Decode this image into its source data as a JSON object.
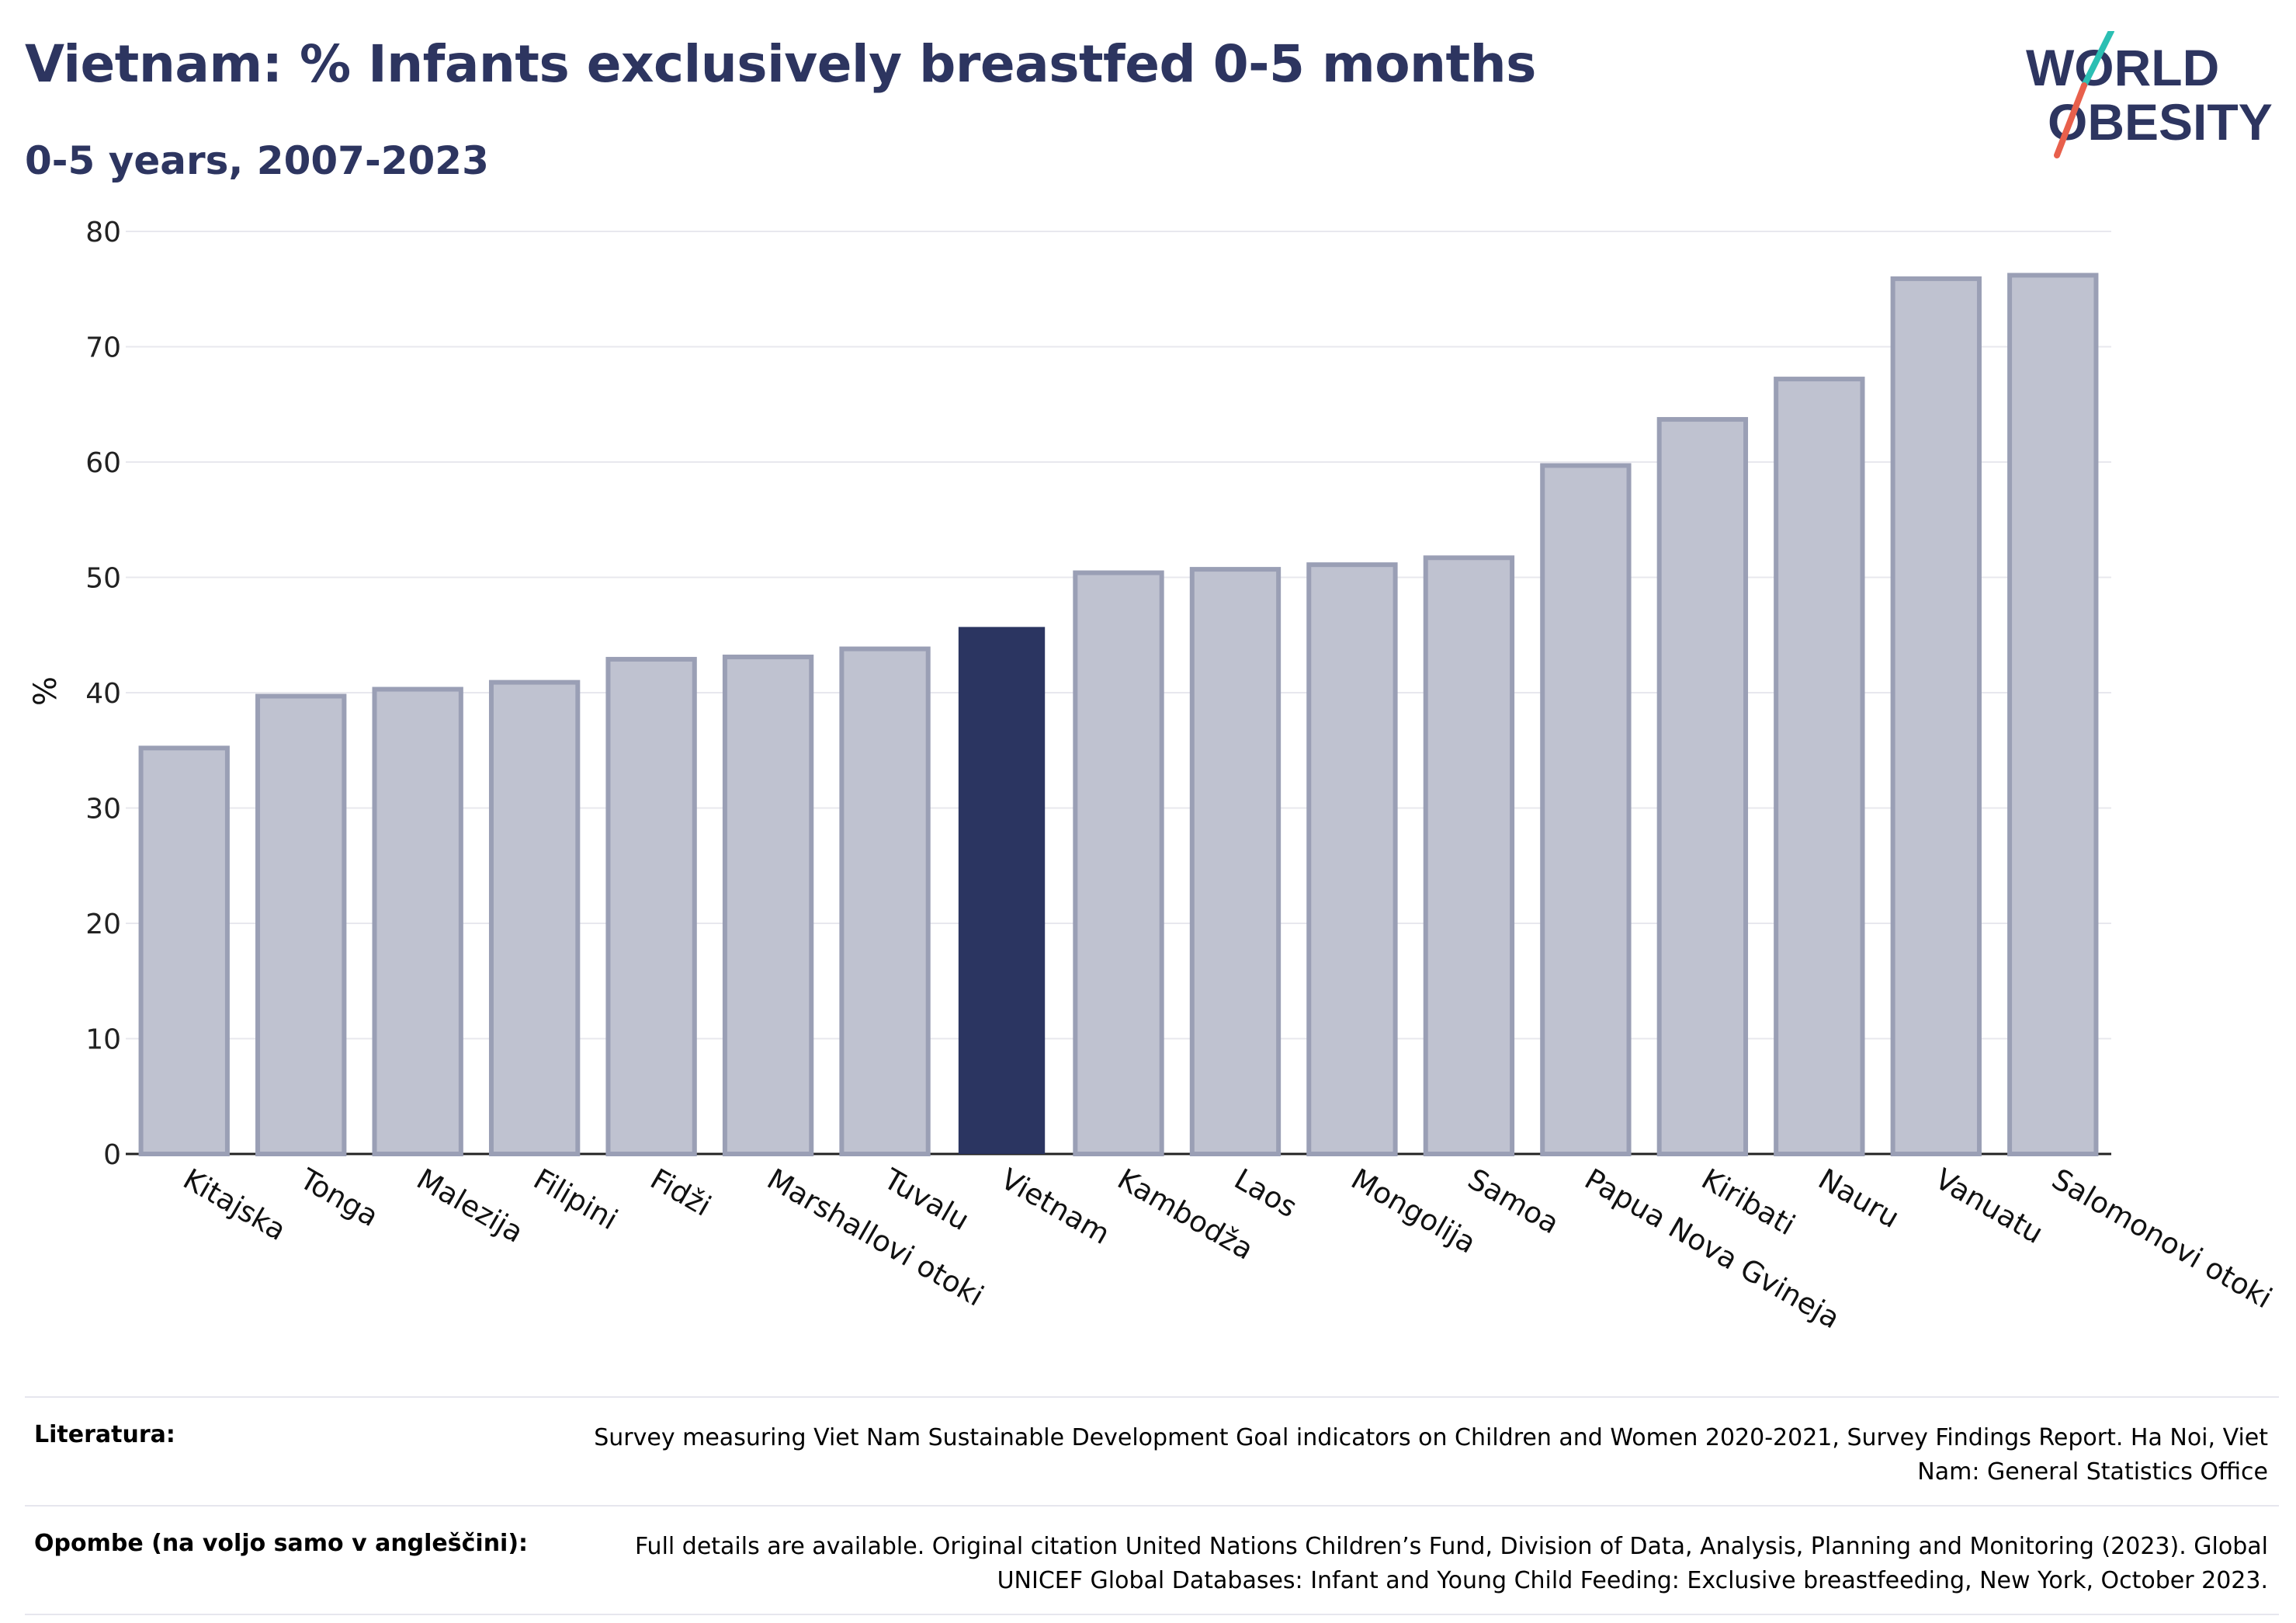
{
  "header": {
    "title": "Vietnam: % Infants exclusively breastfed 0-5 months",
    "subtitle": "0-5 years, 2007-2023"
  },
  "logo": {
    "line1": "WORLD",
    "line2": "OBESITY",
    "colors": {
      "text": "#2d3560",
      "slash_teal": "#2bbfb3",
      "slash_red": "#e8604c"
    }
  },
  "chart_data": {
    "type": "bar",
    "ylabel": "%",
    "ylim": [
      0,
      80
    ],
    "yticks": [
      0,
      10,
      20,
      30,
      40,
      50,
      60,
      70,
      80
    ],
    "grid": true,
    "highlight": "Vietnam",
    "colors": {
      "bar": "#bfc2d0",
      "bar_edge": "#9a9fb5",
      "highlight": "#2b3561"
    },
    "categories": [
      "Kitajska",
      "Tonga",
      "Malezija",
      "Filipini",
      "Fidži",
      "Marshallovi otoki",
      "Tuvalu",
      "Vietnam",
      "Kambodža",
      "Laos",
      "Mongolija",
      "Samoa",
      "Papua Nova Gvineja",
      "Kiribati",
      "Nauru",
      "Vanuatu",
      "Salomonovi otoki"
    ],
    "values": [
      35.2,
      39.7,
      40.3,
      40.9,
      42.9,
      43.1,
      43.8,
      45.7,
      50.4,
      50.7,
      51.1,
      51.7,
      59.7,
      63.7,
      67.2,
      75.9,
      76.2
    ]
  },
  "footer": {
    "rows": [
      {
        "label": "Literatura:",
        "text": "Survey measuring Viet Nam Sustainable Development Goal indicators on Children and Women 2020-2021, Survey Findings Report. Ha Noi, Viet Nam: General Statistics Office"
      },
      {
        "label": "Opombe (na voljo samo v angleščini):",
        "text": "Full details are available. Original citation United Nations Children’s Fund, Division of Data, Analysis, Planning and Monitoring (2023). Global UNICEF Global Databases: Infant and Young Child Feeding: Exclusive breastfeeding, New York, October 2023."
      }
    ]
  }
}
